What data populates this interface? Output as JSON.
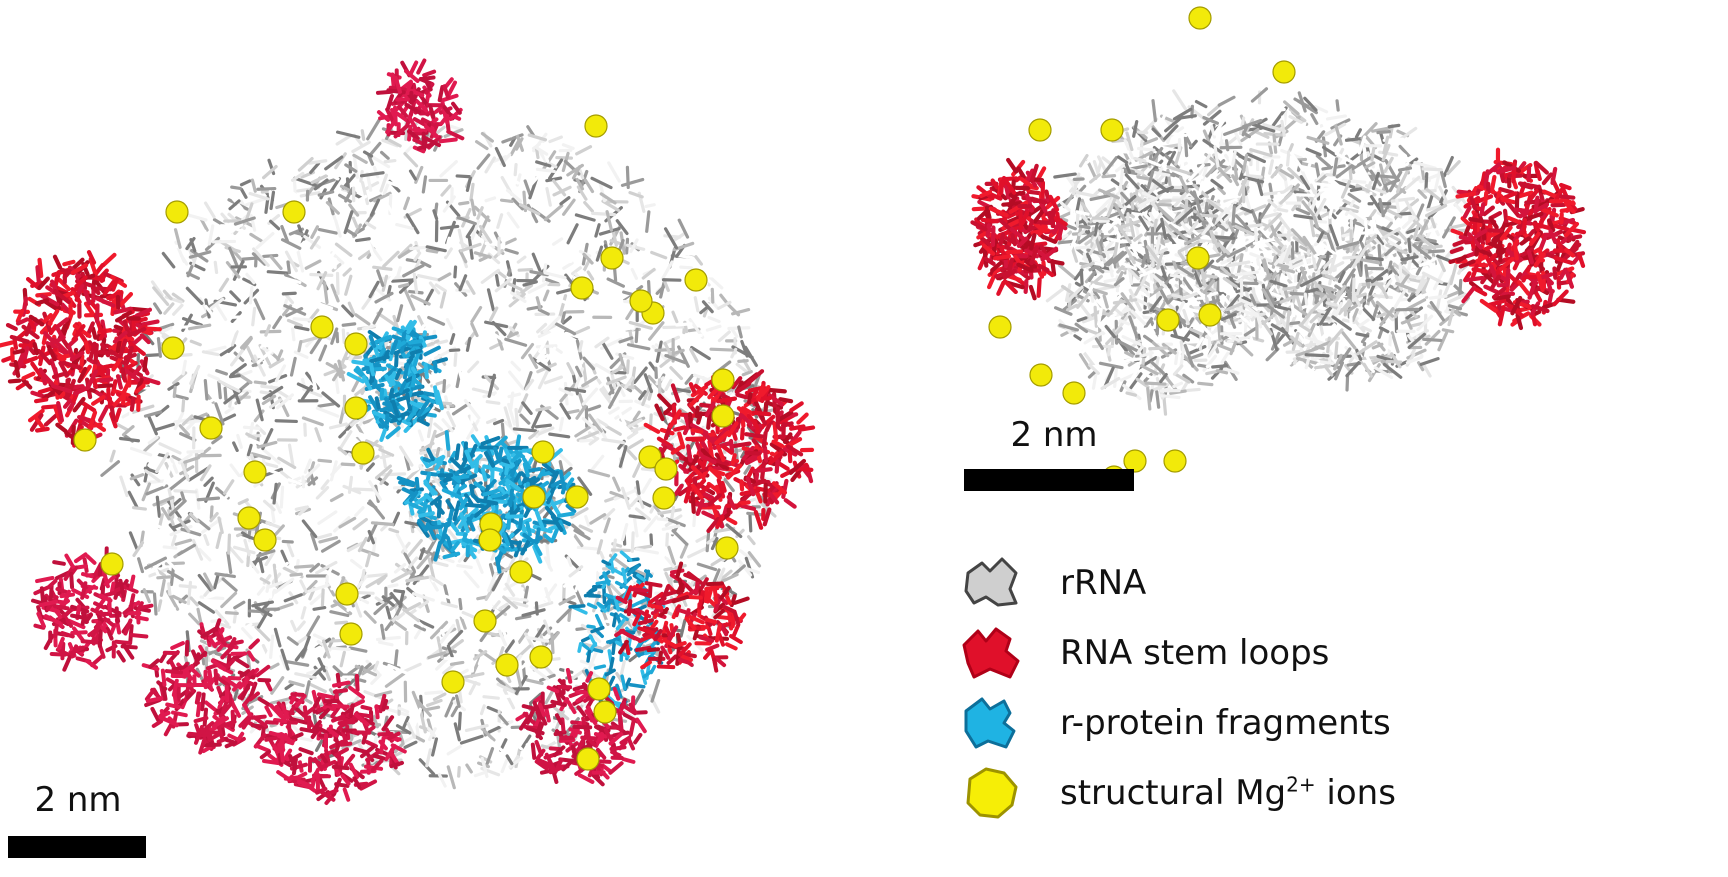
{
  "scalebars": {
    "left_label": "2 nm",
    "right_label": "2 nm"
  },
  "legend": {
    "items": [
      {
        "label": "rRNA",
        "color": "#cfcfcf",
        "stroke": "#444444",
        "icon": "rrna-blob-icon"
      },
      {
        "label": "RNA stem loops",
        "color": "#e0102a",
        "stroke": "#b00018",
        "icon": "stem-loop-blob-icon"
      },
      {
        "label": "r-protein fragments",
        "color": "#1fb3e3",
        "stroke": "#0d6f9a",
        "icon": "protein-blob-icon"
      },
      {
        "label": "structural Mg",
        "sup": "2+",
        "suffix": " ions",
        "color": "#f6ee06",
        "stroke": "#9d9300",
        "icon": "mg-blob-icon"
      }
    ]
  },
  "colors": {
    "rrna": "#c9c9c9",
    "rrna_dark": "#8a8a8a",
    "stem_loop": "#e0102a",
    "stem_loop_dark": "#c4133f",
    "protein": "#1fa9d8",
    "mg": "#f2ea0a"
  }
}
